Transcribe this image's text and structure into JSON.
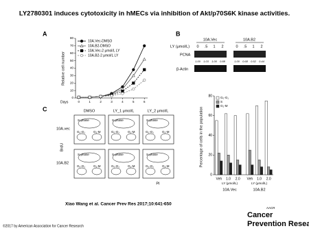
{
  "title": "LY2780301 induces cytotoxicity in hMECs via inhibition of Akt/p70S6K kinase activities.",
  "panel_labels": [
    "A",
    "B",
    "C"
  ],
  "blot": {
    "groups": [
      "10A.Vec",
      "10A.B2"
    ],
    "dose_label": "LY (μmol/L)",
    "doses": [
      "0",
      ".5",
      "1",
      "2",
      "0",
      ".5",
      "1",
      "2"
    ],
    "rows": [
      "PCNA",
      "β-Actin"
    ],
    "pcna_ratios": [
      "1.00",
      "1.03",
      "1.00",
      "0.88",
      "1.00",
      "0.68",
      "0.52",
      "0.44"
    ]
  },
  "flow": {
    "columns": [
      "DMSO",
      "LY_1 μmol/L",
      "LY_2 μmol/L"
    ],
    "rows": [
      "10A.vec",
      "10A.B2"
    ],
    "gates": [
      "S-phase",
      "G₀-G₁",
      "G₂-M"
    ],
    "y_label": "BrdU",
    "x_label": "PI"
  },
  "chart_data": [
    {
      "type": "line",
      "y_label": "Relative cell number",
      "x_label": "Days",
      "x": [
        0,
        1,
        2,
        3,
        4,
        5,
        6
      ],
      "xlim": [
        -0.3,
        6.3
      ],
      "xticks": [
        0,
        1,
        2,
        3,
        4,
        5,
        6
      ],
      "ylim": [
        0,
        80
      ],
      "yticks": [
        0,
        10,
        20,
        30,
        40,
        50,
        60,
        70,
        80
      ],
      "series": [
        {
          "name": "10A.Vec-DMSO",
          "color": "#000000",
          "marker": "circle-filled",
          "dash": false,
          "values": [
            1,
            1,
            2,
            6,
            15,
            38,
            70
          ]
        },
        {
          "name": "10A.B2-DMSO",
          "color": "#555555",
          "marker": "triangle-open",
          "dash": false,
          "values": [
            1,
            1,
            2,
            5,
            12,
            30,
            52
          ]
        },
        {
          "name": "10A.Vec-2 μmol/L LY",
          "color": "#000000",
          "marker": "square-filled",
          "dash": true,
          "values": [
            1,
            1,
            2,
            4,
            9,
            20,
            38
          ]
        },
        {
          "name": "10A.B2-2 μmol/L LY",
          "color": "#777777",
          "marker": "circle-open",
          "dash": true,
          "values": [
            1,
            1,
            2,
            3,
            6,
            12,
            24
          ]
        }
      ]
    },
    {
      "type": "bar",
      "y_label": "Percentage of cells in the population",
      "categories": [
        "Veh",
        "1.0",
        "2.0",
        "Veh",
        "1.0",
        "2.0"
      ],
      "x_sublabels": [
        "LY (μmol/L)",
        "LY (μmol/L)"
      ],
      "groups": [
        "10A.Vec",
        "10A.B2"
      ],
      "ylim": [
        0,
        80
      ],
      "yticks": [
        0,
        20,
        40,
        60,
        80
      ],
      "series": [
        {
          "name": "G₀-G₁",
          "color": "#ffffff",
          "values": [
            55,
            62,
            60,
            62,
            70,
            75
          ]
        },
        {
          "name": "S",
          "color": "#999999",
          "values": [
            22,
            20,
            15,
            25,
            15,
            8
          ]
        },
        {
          "name": "G₂-M",
          "color": "#222222",
          "values": [
            14,
            12,
            10,
            10,
            8,
            5
          ]
        }
      ]
    }
  ],
  "citation": "Xiao Wang et al. Cancer Prev Res 2017;10:641-650",
  "copyright": "©2017 by American Association for Cancer Research",
  "logo": {
    "mark": "AACR",
    "line1": "Cancer",
    "line2": "Prevention Research"
  }
}
